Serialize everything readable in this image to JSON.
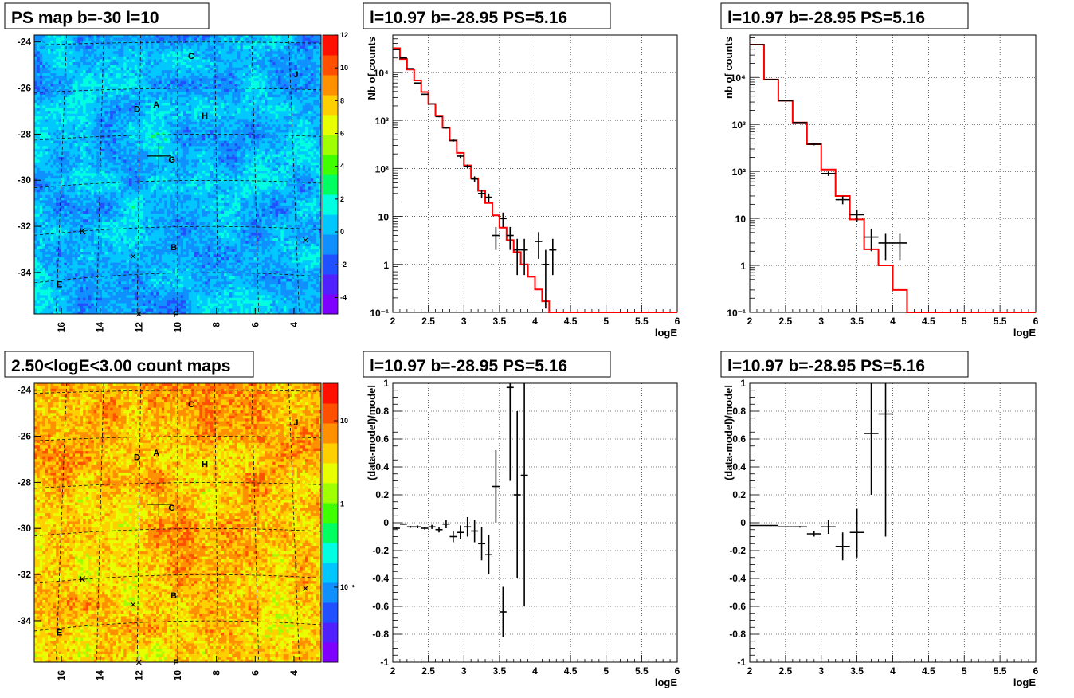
{
  "chart_data": [
    {
      "id": "psmap",
      "type": "heatmap",
      "title": "PS map b=-30 l=10",
      "x_ticks": [
        "16",
        "14",
        "12",
        "10",
        "8",
        "6",
        "4"
      ],
      "y_ticks": [
        "-24",
        "-26",
        "-28",
        "-30",
        "-32",
        "-34"
      ],
      "colorbar_ticks": [
        "12",
        "10",
        "8",
        "6",
        "4",
        "2",
        "0",
        "-2",
        "-4"
      ],
      "colorbar_range": [
        -5,
        12
      ],
      "source_labels": [
        {
          "name": "C",
          "l": 9.3,
          "b": -24.6
        },
        {
          "name": "J",
          "l": 3.9,
          "b": -25.4
        },
        {
          "name": "A",
          "l": 11.1,
          "b": -26.7
        },
        {
          "name": "D",
          "l": 12.1,
          "b": -26.9
        },
        {
          "name": "H",
          "l": 8.6,
          "b": -27.2
        },
        {
          "name": "G",
          "l": 10.3,
          "b": -29.1
        },
        {
          "name": "I",
          "l": 3.9,
          "b": -31.6
        },
        {
          "name": "K",
          "l": 14.9,
          "b": -32.2
        },
        {
          "name": "B",
          "l": 10.2,
          "b": -32.9
        },
        {
          "name": "E",
          "l": 16.1,
          "b": -34.5
        },
        {
          "name": "F",
          "l": 10.1,
          "b": -35.8
        }
      ],
      "crosses": [
        {
          "l": 12.3,
          "b": -33.3
        },
        {
          "l": 3.4,
          "b": -32.6
        },
        {
          "l": 12.0,
          "b": -35.8
        }
      ],
      "target_marker": {
        "l": 10.97,
        "b": -28.95
      }
    },
    {
      "id": "countmap",
      "type": "heatmap",
      "title": "2.50<logE<3.00 count maps",
      "x_ticks": [
        "16",
        "14",
        "12",
        "10",
        "8",
        "6",
        "4"
      ],
      "y_ticks": [
        "-24",
        "-26",
        "-28",
        "-30",
        "-32",
        "-34"
      ],
      "colorbar_ticks": [
        "10",
        "1",
        "10⁻¹"
      ],
      "log_scale": true
    },
    {
      "id": "spec_left",
      "type": "line",
      "title": "l=10.97 b=-28.95 PS=5.16",
      "xlabel": "logE",
      "ylabel": "Nb of counts",
      "xlim": [
        2,
        6
      ],
      "ylim": [
        0.1,
        60000
      ],
      "log_y": true,
      "grid": true,
      "x_ticks": [
        "2",
        "2.5",
        "3",
        "3.5",
        "4",
        "4.5",
        "5",
        "5.5",
        "6"
      ],
      "y_ticks": [
        "10⁻¹",
        "1",
        "10",
        "10²",
        "10³",
        "10⁴"
      ],
      "model": {
        "color": "#ff0000",
        "edges": [
          2.0,
          2.1,
          2.2,
          2.3,
          2.4,
          2.5,
          2.6,
          2.7,
          2.8,
          2.9,
          3.0,
          3.1,
          3.2,
          3.3,
          3.4,
          3.5,
          3.6,
          3.7,
          3.8,
          3.9,
          4.0,
          4.1,
          4.2,
          4.3,
          4.4,
          6.0
        ],
        "values": [
          32000,
          19000,
          11500,
          6800,
          3900,
          2200,
          1250,
          700,
          380,
          210,
          115,
          62,
          34,
          19,
          10.5,
          5.8,
          3.2,
          1.8,
          1.0,
          0.55,
          0.3,
          0.17,
          0.1,
          0.1,
          0.1
        ]
      },
      "data": [
        {
          "x": 2.05,
          "y": 30000,
          "lo": 29500,
          "hi": 30500
        },
        {
          "x": 2.15,
          "y": 20000,
          "lo": 19600,
          "hi": 20400
        },
        {
          "x": 2.25,
          "y": 12000,
          "lo": 11800,
          "hi": 12200
        },
        {
          "x": 2.35,
          "y": 6000,
          "lo": 5900,
          "hi": 6100
        },
        {
          "x": 2.45,
          "y": 3500,
          "lo": 3440,
          "hi": 3560
        },
        {
          "x": 2.55,
          "y": 2200,
          "lo": 2150,
          "hi": 2250
        },
        {
          "x": 2.65,
          "y": 1200,
          "lo": 1160,
          "hi": 1240
        },
        {
          "x": 2.75,
          "y": 700,
          "lo": 670,
          "hi": 730
        },
        {
          "x": 2.85,
          "y": 380,
          "lo": 360,
          "hi": 400
        },
        {
          "x": 2.95,
          "y": 180,
          "lo": 165,
          "hi": 195
        },
        {
          "x": 3.05,
          "y": 110,
          "lo": 100,
          "hi": 120
        },
        {
          "x": 3.15,
          "y": 60,
          "lo": 52,
          "hi": 68
        },
        {
          "x": 3.25,
          "y": 30,
          "lo": 24,
          "hi": 36
        },
        {
          "x": 3.35,
          "y": 25,
          "lo": 20,
          "hi": 30
        },
        {
          "x": 3.45,
          "y": 4,
          "lo": 2,
          "hi": 6
        },
        {
          "x": 3.55,
          "y": 9,
          "lo": 6,
          "hi": 12
        },
        {
          "x": 3.65,
          "y": 4,
          "lo": 2,
          "hi": 6
        },
        {
          "x": 3.75,
          "y": 2,
          "lo": 0.6,
          "hi": 3.4
        },
        {
          "x": 3.85,
          "y": 2,
          "lo": 0.6,
          "hi": 3.4
        },
        {
          "x": 4.05,
          "y": 3,
          "lo": 1.3,
          "hi": 4.7
        },
        {
          "x": 4.15,
          "y": 1,
          "lo": 0.12,
          "hi": 2
        },
        {
          "x": 4.25,
          "y": 2,
          "lo": 0.6,
          "hi": 3.4
        }
      ]
    },
    {
      "id": "spec_right",
      "type": "line",
      "title": "l=10.97 b=-28.95 PS=5.16",
      "xlabel": "logE",
      "ylabel": "nb of counts",
      "xlim": [
        2,
        6
      ],
      "ylim": [
        0.1,
        80000
      ],
      "log_y": true,
      "grid": true,
      "x_ticks": [
        "2",
        "2.5",
        "3",
        "3.5",
        "4",
        "4.5",
        "5",
        "5.5",
        "6"
      ],
      "y_ticks": [
        "10⁻¹",
        "1",
        "10",
        "10²",
        "10³",
        "10⁴"
      ],
      "model": {
        "color": "#ff0000",
        "edges": [
          2.0,
          2.2,
          2.4,
          2.6,
          2.8,
          3.0,
          3.2,
          3.4,
          3.6,
          3.8,
          4.0,
          4.2,
          4.4,
          4.6,
          6.0
        ],
        "values": [
          50000,
          9000,
          3200,
          1100,
          380,
          110,
          30,
          9.5,
          2.2,
          1.0,
          0.3,
          0.1,
          0.1,
          0.1
        ]
      },
      "data": [
        {
          "x": 2.1,
          "y": 50000,
          "lo": 49700,
          "hi": 50300,
          "xerr": 0.1
        },
        {
          "x": 2.3,
          "y": 9000,
          "lo": 8900,
          "hi": 9100,
          "xerr": 0.1
        },
        {
          "x": 2.5,
          "y": 3200,
          "lo": 3140,
          "hi": 3260,
          "xerr": 0.1
        },
        {
          "x": 2.7,
          "y": 1100,
          "lo": 1070,
          "hi": 1130,
          "xerr": 0.1
        },
        {
          "x": 2.9,
          "y": 380,
          "lo": 360,
          "hi": 400,
          "xerr": 0.1
        },
        {
          "x": 3.1,
          "y": 90,
          "lo": 80,
          "hi": 100,
          "xerr": 0.1
        },
        {
          "x": 3.3,
          "y": 25,
          "lo": 20,
          "hi": 30,
          "xerr": 0.1
        },
        {
          "x": 3.5,
          "y": 12,
          "lo": 8.5,
          "hi": 15.5,
          "xerr": 0.1
        },
        {
          "x": 3.7,
          "y": 4,
          "lo": 2,
          "hi": 6,
          "xerr": 0.1
        },
        {
          "x": 3.9,
          "y": 3,
          "lo": 1.3,
          "hi": 4.7,
          "xerr": 0.1
        },
        {
          "x": 4.1,
          "y": 3,
          "lo": 1.3,
          "hi": 4.7,
          "xerr": 0.1
        }
      ]
    },
    {
      "id": "resid_left",
      "type": "scatter",
      "title": "l=10.97 b=-28.95 PS=5.16",
      "xlabel": "logE",
      "ylabel": "(data-model)/model",
      "xlim": [
        2,
        6
      ],
      "ylim": [
        -1,
        1
      ],
      "grid": true,
      "x_ticks": [
        "2",
        "2.5",
        "3",
        "3.5",
        "4",
        "4.5",
        "5",
        "5.5",
        "6"
      ],
      "y_ticks": [
        "1",
        "0.8",
        "0.6",
        "0.4",
        "0.2",
        "0",
        "-0.2",
        "-0.4",
        "-0.6",
        "-0.8",
        "-1"
      ],
      "data": [
        {
          "x": 2.05,
          "y": -0.04,
          "lo": -0.045,
          "hi": -0.035
        },
        {
          "x": 2.15,
          "y": -0.01,
          "lo": -0.015,
          "hi": -0.005
        },
        {
          "x": 2.25,
          "y": -0.03,
          "lo": -0.037,
          "hi": -0.023
        },
        {
          "x": 2.35,
          "y": -0.03,
          "lo": -0.04,
          "hi": -0.02
        },
        {
          "x": 2.45,
          "y": -0.04,
          "lo": -0.05,
          "hi": -0.03
        },
        {
          "x": 2.55,
          "y": -0.03,
          "lo": -0.045,
          "hi": -0.015
        },
        {
          "x": 2.65,
          "y": -0.05,
          "lo": -0.07,
          "hi": -0.03
        },
        {
          "x": 2.75,
          "y": -0.01,
          "lo": -0.04,
          "hi": 0.02
        },
        {
          "x": 2.85,
          "y": -0.1,
          "lo": -0.14,
          "hi": -0.06
        },
        {
          "x": 2.95,
          "y": -0.07,
          "lo": -0.12,
          "hi": -0.02
        },
        {
          "x": 3.05,
          "y": -0.03,
          "lo": -0.1,
          "hi": 0.04
        },
        {
          "x": 3.15,
          "y": -0.06,
          "lo": -0.14,
          "hi": 0.02
        },
        {
          "x": 3.25,
          "y": -0.15,
          "lo": -0.27,
          "hi": -0.03
        },
        {
          "x": 3.35,
          "y": -0.23,
          "lo": -0.37,
          "hi": -0.09
        },
        {
          "x": 3.45,
          "y": 0.26,
          "lo": 0,
          "hi": 0.52
        },
        {
          "x": 3.55,
          "y": -0.64,
          "lo": -0.82,
          "hi": -0.46
        },
        {
          "x": 3.65,
          "y": 0.97,
          "lo": 0.3,
          "hi": 1.0
        },
        {
          "x": 3.75,
          "y": 0.2,
          "lo": -0.4,
          "hi": 0.8
        },
        {
          "x": 3.85,
          "y": 0.34,
          "lo": -0.6,
          "hi": 1.0
        }
      ]
    },
    {
      "id": "resid_right",
      "type": "scatter",
      "title": "l=10.97 b=-28.95 PS=5.16",
      "xlabel": "logE",
      "ylabel": "(data-model)/model",
      "xlim": [
        2,
        6
      ],
      "ylim": [
        -1,
        1
      ],
      "grid": true,
      "x_ticks": [
        "2",
        "2.5",
        "3",
        "3.5",
        "4",
        "4.5",
        "5",
        "5.5",
        "6"
      ],
      "y_ticks": [
        "1",
        "0.8",
        "0.6",
        "0.4",
        "0.2",
        "0",
        "-0.2",
        "-0.4",
        "-0.6",
        "-0.8",
        "-1"
      ],
      "data": [
        {
          "x": 2.1,
          "y": -0.02,
          "lo": -0.022,
          "hi": -0.018,
          "xerr": 0.1
        },
        {
          "x": 2.3,
          "y": -0.02,
          "lo": -0.024,
          "hi": -0.016,
          "xerr": 0.1
        },
        {
          "x": 2.5,
          "y": -0.03,
          "lo": -0.035,
          "hi": -0.025,
          "xerr": 0.1
        },
        {
          "x": 2.7,
          "y": -0.03,
          "lo": -0.036,
          "hi": -0.024,
          "xerr": 0.1
        },
        {
          "x": 2.9,
          "y": -0.08,
          "lo": -0.1,
          "hi": -0.06,
          "xerr": 0.1
        },
        {
          "x": 3.1,
          "y": -0.03,
          "lo": -0.08,
          "hi": 0.02,
          "xerr": 0.1
        },
        {
          "x": 3.3,
          "y": -0.17,
          "lo": -0.27,
          "hi": -0.07,
          "xerr": 0.1
        },
        {
          "x": 3.5,
          "y": -0.07,
          "lo": -0.25,
          "hi": 0.1,
          "xerr": 0.1
        },
        {
          "x": 3.7,
          "y": 0.64,
          "lo": 0.2,
          "hi": 1.0,
          "xerr": 0.1
        },
        {
          "x": 3.9,
          "y": 0.78,
          "lo": -0.1,
          "hi": 1.0,
          "xerr": 0.1
        }
      ]
    }
  ]
}
